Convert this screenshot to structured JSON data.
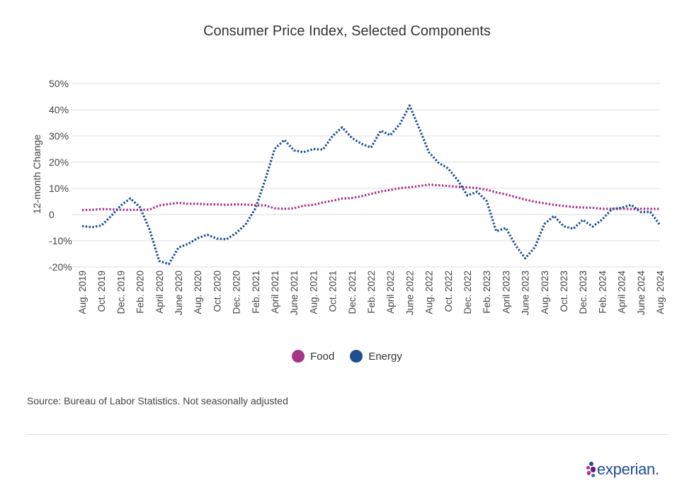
{
  "title": "Consumer Price Index, Selected Components",
  "source": "Source: Bureau of Labor Statistics. Not seasonally adjusted",
  "logo_text": "experian.",
  "colors": {
    "food": "#a6358a",
    "energy": "#1d4f91",
    "grid": "#dddddd"
  },
  "chart_data": {
    "type": "line",
    "title": "Consumer Price Index, Selected Components",
    "xlabel": "",
    "ylabel": "12-month Change",
    "ylim": [
      -20,
      50
    ],
    "yticks": [
      -20,
      -10,
      0,
      10,
      20,
      30,
      40,
      50
    ],
    "ytick_labels": [
      "-20%",
      "-10%",
      "0",
      "10%",
      "20%",
      "30%",
      "40%",
      "50%"
    ],
    "grid": true,
    "legend": "bottom",
    "x_tick_labels": [
      "Aug. 2019",
      "Oct. 2019",
      "Dec. 2019",
      "Feb. 2020",
      "April 2020",
      "June 2020",
      "Aug. 2020",
      "Oct. 2020",
      "Dec. 2020",
      "Feb. 2021",
      "April 2021",
      "June 2021",
      "Aug. 2021",
      "Oct. 2021",
      "Dec. 2021",
      "Feb. 2022",
      "April 2022",
      "June 2022",
      "Aug. 2022",
      "Oct. 2022",
      "Dec. 2022",
      "Feb. 2023",
      "April 2023",
      "June 2023",
      "Aug. 2023",
      "Oct. 2023",
      "Dec. 2023",
      "Feb. 2024",
      "April 2024",
      "June 2024",
      "Aug. 2024"
    ],
    "categories": [
      "Aug. 2019",
      "Sep. 2019",
      "Oct. 2019",
      "Nov. 2019",
      "Dec. 2019",
      "Jan. 2020",
      "Feb. 2020",
      "Mar. 2020",
      "April 2020",
      "May 2020",
      "June 2020",
      "July 2020",
      "Aug. 2020",
      "Sep. 2020",
      "Oct. 2020",
      "Nov. 2020",
      "Dec. 2020",
      "Jan. 2021",
      "Feb. 2021",
      "Mar. 2021",
      "April 2021",
      "May 2021",
      "June 2021",
      "July 2021",
      "Aug. 2021",
      "Sep. 2021",
      "Oct. 2021",
      "Nov. 2021",
      "Dec. 2021",
      "Jan. 2022",
      "Feb. 2022",
      "Mar. 2022",
      "April 2022",
      "May 2022",
      "June 2022",
      "July 2022",
      "Aug. 2022",
      "Sep. 2022",
      "Oct. 2022",
      "Nov. 2022",
      "Dec. 2022",
      "Jan. 2023",
      "Feb. 2023",
      "Mar. 2023",
      "April 2023",
      "May 2023",
      "June 2023",
      "July 2023",
      "Aug. 2023",
      "Sep. 2023",
      "Oct. 2023",
      "Nov. 2023",
      "Dec. 2023",
      "Jan. 2024",
      "Feb. 2024",
      "Mar. 2024",
      "April 2024",
      "May 2024",
      "June 2024",
      "July 2024",
      "Aug. 2024"
    ],
    "series": [
      {
        "name": "Food",
        "values": [
          1.7,
          1.8,
          2.1,
          2.0,
          1.8,
          1.8,
          1.8,
          1.9,
          3.5,
          4.0,
          4.5,
          4.1,
          4.1,
          3.9,
          3.9,
          3.7,
          3.9,
          3.8,
          3.6,
          3.5,
          2.4,
          2.2,
          2.4,
          3.4,
          3.7,
          4.6,
          5.3,
          6.1,
          6.3,
          7.0,
          7.9,
          8.8,
          9.4,
          10.1,
          10.4,
          10.9,
          11.4,
          11.2,
          10.9,
          10.6,
          10.4,
          10.1,
          9.5,
          8.5,
          7.7,
          6.7,
          5.7,
          4.9,
          4.3,
          3.7,
          3.3,
          2.9,
          2.7,
          2.6,
          2.2,
          2.2,
          2.2,
          2.1,
          2.2,
          2.2,
          2.1
        ]
      },
      {
        "name": "Energy",
        "values": [
          -4.4,
          -4.8,
          -4.2,
          -0.6,
          3.4,
          6.2,
          2.8,
          -5.7,
          -17.7,
          -18.9,
          -12.6,
          -11.2,
          -9.0,
          -7.7,
          -9.2,
          -9.4,
          -7.0,
          -3.6,
          2.4,
          13.2,
          25.1,
          28.5,
          24.5,
          23.8,
          25.0,
          24.8,
          30.0,
          33.3,
          29.3,
          27.0,
          25.6,
          32.0,
          30.3,
          34.6,
          41.6,
          32.9,
          23.8,
          19.8,
          17.6,
          13.1,
          7.3,
          8.7,
          5.2,
          -6.4,
          -5.1,
          -11.7,
          -16.7,
          -12.5,
          -3.6,
          -0.5,
          -4.5,
          -5.4,
          -2.0,
          -4.6,
          -1.9,
          2.1,
          2.6,
          3.7,
          1.0,
          1.0,
          -4.0
        ]
      }
    ]
  }
}
